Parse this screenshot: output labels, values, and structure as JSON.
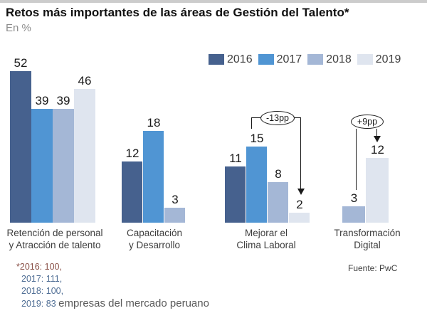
{
  "header": {
    "title": "Retos más importantes de las áreas de Gestión del Talento*",
    "subtitle": "En %"
  },
  "legend": {
    "items": [
      {
        "label": "2016",
        "color": "#46618e"
      },
      {
        "label": "2017",
        "color": "#5095d3"
      },
      {
        "label": "2018",
        "color": "#a4b7d6"
      },
      {
        "label": "2019",
        "color": "#dfe5ef"
      }
    ]
  },
  "chart_data": {
    "type": "bar",
    "title": "Retos más importantes de las áreas de Gestión del Talento*",
    "unit": "En %",
    "years": [
      "2016",
      "2017",
      "2018",
      "2019"
    ],
    "grid": false,
    "legend_position": "top-right",
    "groups": [
      {
        "category": "Retención de personal y Atracción de talento",
        "label_lines": [
          "Retención de personal",
          "y Atracción de talento"
        ],
        "bars": [
          {
            "year": "2016",
            "value": 52
          },
          {
            "year": "2017",
            "value": 39
          },
          {
            "year": "2018",
            "value": 39
          },
          {
            "year": "2019",
            "value": 46
          }
        ]
      },
      {
        "category": "Capacitación y Desarrollo",
        "label_lines": [
          "Capacitación",
          "y Desarrollo"
        ],
        "bars": [
          {
            "year": "2016",
            "value": 12
          },
          {
            "year": "2017",
            "value": 18
          },
          {
            "year": "2018",
            "value": 3
          }
        ]
      },
      {
        "category": "Mejorar el Clima Laboral",
        "label_lines": [
          "Mejorar el",
          "Clima Laboral"
        ],
        "bars": [
          {
            "year": "2016",
            "value": 11
          },
          {
            "year": "2017",
            "value": 15
          },
          {
            "year": "2018",
            "value": 8
          },
          {
            "year": "2019",
            "value": 2
          }
        ]
      },
      {
        "category": "Transformación Digital",
        "label_lines": [
          "Transformación",
          "Digital"
        ],
        "bars": [
          {
            "year": "2018",
            "value": 3
          },
          {
            "year": "2019",
            "value": 12
          }
        ]
      }
    ],
    "annotations": [
      {
        "text": "-13pp",
        "group": "Mejorar el Clima Laboral",
        "from_year": "2017",
        "to_year": "2019"
      },
      {
        "text": "+9pp",
        "group": "Transformación Digital",
        "from_year": "2018",
        "to_year": "2019"
      }
    ]
  },
  "footnote": {
    "lines": [
      "*2016: 100,",
      "2017: 111,",
      "2018: 100,",
      "2019: 83"
    ],
    "suffix": "empresas del mercado peruano"
  },
  "source": "Fuente: PwC"
}
